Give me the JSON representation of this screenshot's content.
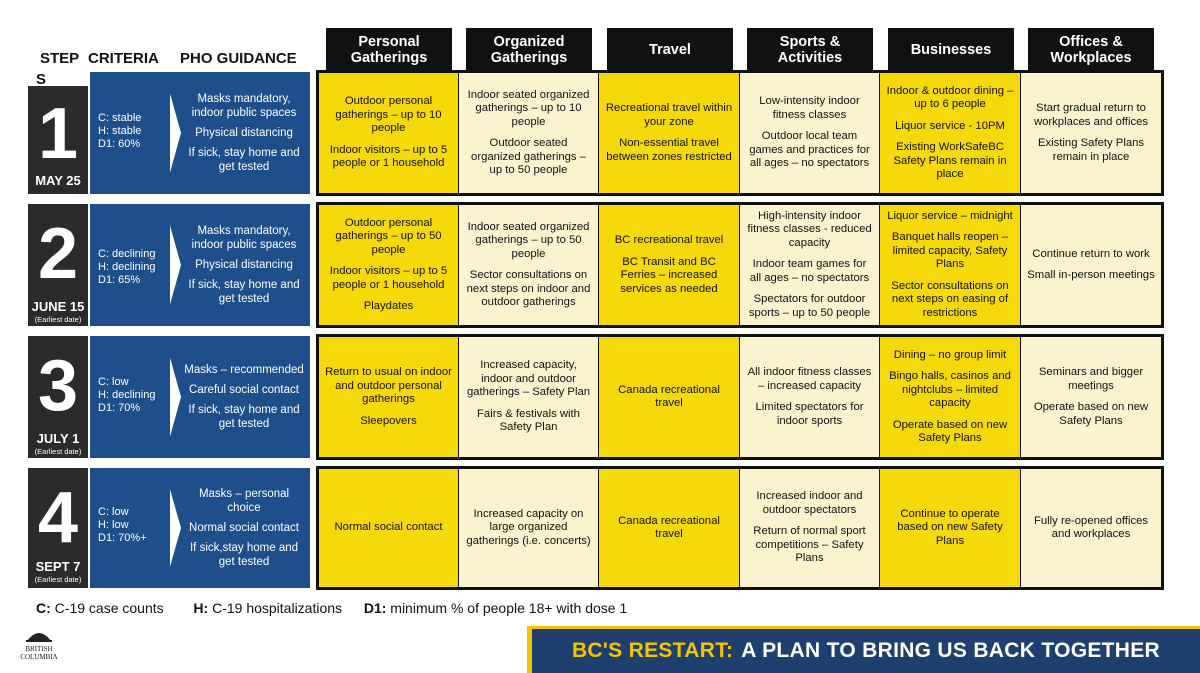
{
  "header": {
    "step_label": "STEP",
    "criteria_label": "CRITERIA",
    "pho_label": "PHO GUIDANCE",
    "stray_letter": "S",
    "columns": [
      "Personal\nGatherings",
      "Organized\nGatherings",
      "Travel",
      "Sports &\nActivities",
      "Businesses",
      "Offices &\nWorkplaces"
    ]
  },
  "steps": [
    {
      "number": "1",
      "date": "MAY 25",
      "note": "",
      "criteria": "C: stable\nH: stable\nD1: 60%",
      "pho": [
        "Masks mandatory, indoor public spaces",
        "Physical distancing",
        "If sick, stay home and get tested"
      ],
      "cells": [
        [
          "Outdoor personal gatherings – up to 10 people",
          "Indoor visitors – up to 5 people or 1 household"
        ],
        [
          "Indoor seated organized gatherings – up to 10 people",
          "Outdoor seated organized gatherings – up to 50 people"
        ],
        [
          "Recreational travel within your zone",
          "Non-essential travel between zones restricted"
        ],
        [
          "Low-intensity indoor fitness classes",
          "Outdoor local team games and practices for all ages – no spectators"
        ],
        [
          "Indoor & outdoor dining – up to 6 people",
          "Liquor service - 10PM",
          "Existing WorkSafeBC Safety Plans remain in place"
        ],
        [
          "Start gradual return to workplaces and offices",
          "Existing Safety Plans remain in place"
        ]
      ]
    },
    {
      "number": "2",
      "date": "JUNE 15",
      "note": "(Earliest date)",
      "criteria": "C: declining\nH: declining\nD1: 65%",
      "pho": [
        "Masks mandatory, indoor public spaces",
        "Physical distancing",
        "If sick, stay home and get tested"
      ],
      "cells": [
        [
          "Outdoor personal gatherings – up to 50 people",
          "Indoor visitors – up to 5 people or 1 household",
          "Playdates"
        ],
        [
          "Indoor seated organized gatherings – up to 50 people",
          "Sector consultations on next steps on indoor and outdoor gatherings"
        ],
        [
          "BC recreational travel",
          "BC Transit and BC Ferries – increased services as needed"
        ],
        [
          "High-intensity indoor fitness classes - reduced capacity",
          "Indoor team games for all ages – no spectators",
          "Spectators for outdoor sports – up to 50 people"
        ],
        [
          "Liquor service – midnight",
          "Banquet halls reopen – limited capacity, Safety Plans",
          "Sector consultations on next steps on easing of restrictions"
        ],
        [
          "Continue return to work",
          "Small in-person meetings"
        ]
      ]
    },
    {
      "number": "3",
      "date": "JULY 1",
      "note": "(Earliest date)",
      "criteria": "C: low\nH: declining\nD1: 70%",
      "pho": [
        "Masks – recommended",
        "Careful social contact",
        "If sick, stay home and get tested"
      ],
      "cells": [
        [
          "Return to usual on indoor and outdoor personal gatherings",
          "Sleepovers"
        ],
        [
          "Increased capacity, indoor and outdoor gatherings – Safety Plan",
          "Fairs & festivals with Safety Plan"
        ],
        [
          "Canada recreational travel"
        ],
        [
          "All indoor fitness classes – increased capacity",
          "Limited spectators for indoor sports"
        ],
        [
          "Dining – no group limit",
          "Bingo halls, casinos and nightclubs – limited capacity",
          "Operate based on new Safety Plans"
        ],
        [
          "Seminars and bigger meetings",
          "Operate based on new Safety Plans"
        ]
      ]
    },
    {
      "number": "4",
      "date": "SEPT 7",
      "note": "(Earliest date)",
      "criteria": "C: low\nH: low\nD1: 70%+",
      "pho": [
        "Masks – personal choice",
        "Normal social contact",
        "If sick,stay home and get tested"
      ],
      "cells": [
        [
          "Normal social contact"
        ],
        [
          "Increased capacity on large organized gatherings (i.e. concerts)"
        ],
        [
          "Canada recreational travel"
        ],
        [
          "Increased indoor and outdoor spectators",
          "Return of normal sport competitions – Safety Plans"
        ],
        [
          "Continue to operate based on new Safety Plans"
        ],
        [
          "Fully re-opened offices and workplaces"
        ]
      ]
    }
  ],
  "legend": {
    "c_key": "C:",
    "c_text": "C-19 case counts",
    "h_key": "H:",
    "h_text": "C-19 hospitalizations",
    "d_key": "D1:",
    "d_text": "minimum % of people 18+ with dose 1"
  },
  "logo": {
    "line1": "BRITISH",
    "line2": "COLUMBIA"
  },
  "banner": {
    "accent": "BC'S RESTART:",
    "text": "A PLAN TO BRING US BACK TOGETHER"
  },
  "colors": {
    "navy": "#1f4e8c",
    "yellow": "#f5d90a",
    "cream": "#fbf2cf",
    "dark": "#2b2b2b",
    "banner": "#1f3f6e",
    "gold": "#f5c400"
  }
}
